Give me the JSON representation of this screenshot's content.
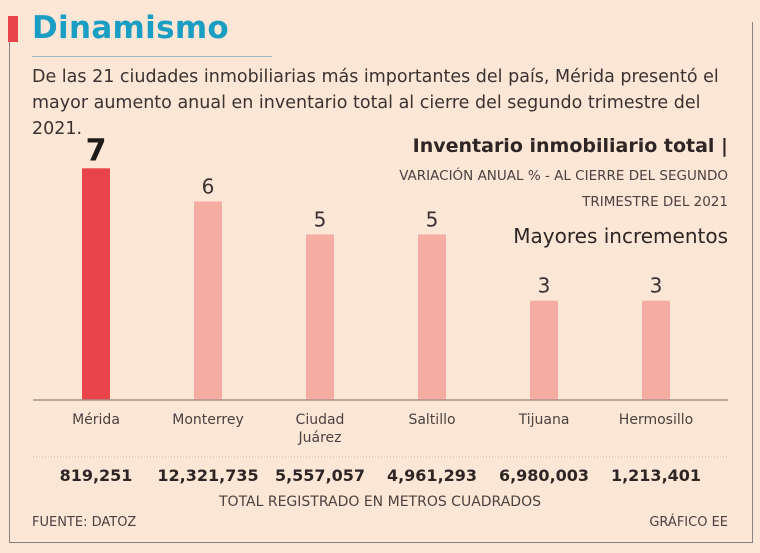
{
  "header": {
    "title": "Dinamismo",
    "intro": "De las 21 ciudades inmobiliarias más importantes del país, Mérida presentó el mayor aumento anual en inventario total al cierre del segundo trimestre del 2021."
  },
  "chart_data": {
    "type": "bar",
    "title": "Inventario inmobiliario total |",
    "subtitle": "VARIACIÓN ANUAL % - AL CIERRE DEL SEGUNDO TRIMESTRE DEL 2021",
    "tag": "Mayores incrementos",
    "categories": [
      "Mérida",
      "Monterrey",
      "Ciudad Juárez",
      "Saltillo",
      "Tijuana",
      "Hermosillo"
    ],
    "values": [
      7,
      6,
      5,
      5,
      3,
      3
    ],
    "totals": [
      "819,251",
      "12,321,735",
      "5,557,057",
      "4,961,293",
      "6,980,003",
      "1,213,401"
    ],
    "totals_label": "TOTAL REGISTRADO EN METROS CUADRADOS",
    "ylim": [
      0,
      7
    ],
    "grid": false,
    "colors": {
      "highlight": "#e9444a",
      "default": "#f5aca3"
    }
  },
  "footer": {
    "source": "FUENTE: DATOZ",
    "credit": "GRÁFICO EE"
  }
}
